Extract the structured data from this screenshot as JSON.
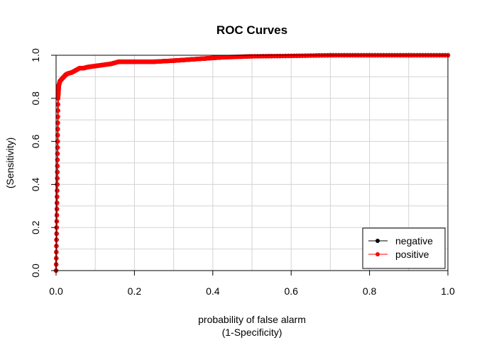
{
  "chart_data": {
    "type": "line",
    "title": "ROC Curves",
    "xlabel_line1": "probability of false alarm",
    "xlabel_line2": "(1-Specificity)",
    "ylabel_line1": "",
    "ylabel_line2": "(Sensitivity)",
    "xlim": [
      0,
      1
    ],
    "ylim": [
      0,
      1
    ],
    "x_ticks": [
      "0.0",
      "0.2",
      "0.4",
      "0.6",
      "0.8",
      "1.0"
    ],
    "y_ticks": [
      "0.0",
      "0.2",
      "0.4",
      "0.6",
      "0.8",
      "1.0"
    ],
    "grid": true,
    "legend": "bottom-right",
    "series": [
      {
        "name": "negative",
        "color": "#000000",
        "x": [
          0.0,
          0.003,
          0.005,
          0.007,
          0.01,
          0.015,
          0.02,
          0.025,
          0.03,
          0.04,
          0.05,
          0.06,
          0.07,
          0.08,
          0.1,
          0.12,
          0.14,
          0.16,
          0.2,
          0.25,
          0.3,
          0.34,
          0.38,
          0.42,
          0.5,
          0.6,
          0.7,
          0.8,
          0.9,
          1.0
        ],
        "y": [
          0.0,
          0.4,
          0.8,
          0.86,
          0.88,
          0.89,
          0.9,
          0.91,
          0.915,
          0.92,
          0.93,
          0.94,
          0.94,
          0.945,
          0.95,
          0.955,
          0.96,
          0.97,
          0.97,
          0.97,
          0.975,
          0.98,
          0.985,
          0.99,
          0.995,
          0.997,
          1.0,
          1.0,
          1.0,
          1.0
        ]
      },
      {
        "name": "positive",
        "color": "#ff0000",
        "x": [
          0.0,
          0.003,
          0.005,
          0.007,
          0.01,
          0.015,
          0.02,
          0.025,
          0.03,
          0.04,
          0.05,
          0.06,
          0.07,
          0.08,
          0.1,
          0.12,
          0.14,
          0.16,
          0.2,
          0.25,
          0.3,
          0.34,
          0.38,
          0.42,
          0.5,
          0.6,
          0.7,
          0.8,
          0.9,
          1.0
        ],
        "y": [
          0.0,
          0.4,
          0.8,
          0.86,
          0.88,
          0.89,
          0.9,
          0.91,
          0.915,
          0.92,
          0.93,
          0.94,
          0.94,
          0.945,
          0.95,
          0.955,
          0.96,
          0.97,
          0.97,
          0.97,
          0.975,
          0.98,
          0.985,
          0.99,
          0.995,
          0.997,
          1.0,
          1.0,
          1.0,
          1.0
        ]
      }
    ]
  }
}
